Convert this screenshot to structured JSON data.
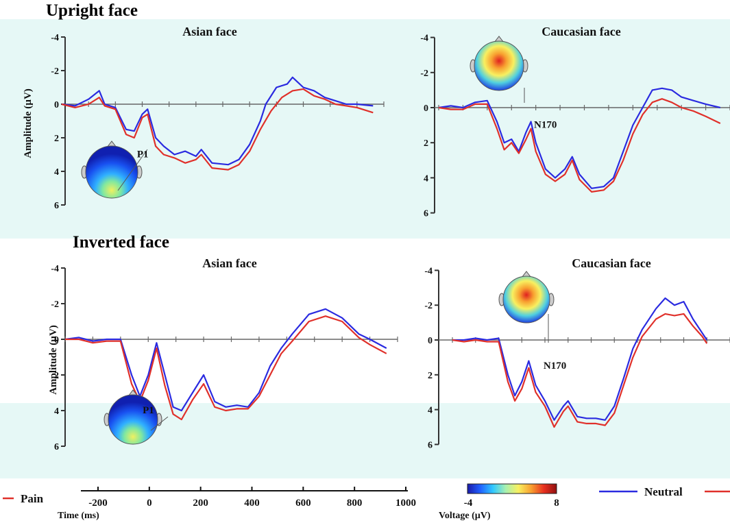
{
  "figure": {
    "sections": [
      {
        "title": "Upright face"
      },
      {
        "title": "Inverted face"
      }
    ]
  },
  "colors": {
    "neutral": "#2a2ae0",
    "pain": "#e0302a",
    "background_tint": "#e6f8f6"
  },
  "colorbar": {
    "label": "Voltage (µV)",
    "min_label": "-4",
    "max_label": "8",
    "colors": [
      "#1a1aa8",
      "#2060ff",
      "#30c8ff",
      "#a8f0b0",
      "#f8f060",
      "#f8a030",
      "#e83020",
      "#901010"
    ]
  },
  "time_axis": {
    "label": "Time (ms)",
    "ticks": [
      "-200",
      "0",
      "200",
      "400",
      "600",
      "800",
      "1000"
    ]
  },
  "legend": {
    "neutral_label": "Neutral",
    "pain_label": "Pain"
  },
  "chart_data": [
    {
      "type": "line",
      "title": "Asian face",
      "section": "Upright face",
      "ylabel": "Amplitude (µV)",
      "y_ticks": [
        "-4",
        "-2",
        "0",
        "2",
        "4",
        "6"
      ],
      "ylim": [
        -4,
        6
      ],
      "xlim": [
        -200,
        1000
      ],
      "annotation": {
        "text": "P1",
        "x": 60,
        "y": 3.0
      },
      "topomap": "posterior-positive",
      "series": [
        {
          "name": "Neutral",
          "points": [
            [
              -200,
              0
            ],
            [
              -150,
              0.1
            ],
            [
              -100,
              -0.3
            ],
            [
              -60,
              -0.8
            ],
            [
              -40,
              0
            ],
            [
              0,
              0.2
            ],
            [
              40,
              1.5
            ],
            [
              70,
              1.6
            ],
            [
              100,
              0.6
            ],
            [
              120,
              0.3
            ],
            [
              150,
              2.0
            ],
            [
              180,
              2.5
            ],
            [
              220,
              3.0
            ],
            [
              260,
              2.8
            ],
            [
              300,
              3.1
            ],
            [
              320,
              2.7
            ],
            [
              360,
              3.5
            ],
            [
              420,
              3.6
            ],
            [
              460,
              3.3
            ],
            [
              500,
              2.4
            ],
            [
              540,
              1.0
            ],
            [
              560,
              0
            ],
            [
              600,
              -1.0
            ],
            [
              640,
              -1.2
            ],
            [
              660,
              -1.6
            ],
            [
              700,
              -1.0
            ],
            [
              740,
              -0.8
            ],
            [
              780,
              -0.4
            ],
            [
              820,
              -0.2
            ],
            [
              860,
              0
            ],
            [
              900,
              0
            ],
            [
              960,
              0.1
            ]
          ]
        },
        {
          "name": "Pain",
          "points": [
            [
              -200,
              0
            ],
            [
              -150,
              0.2
            ],
            [
              -100,
              0
            ],
            [
              -60,
              -0.4
            ],
            [
              -40,
              0.1
            ],
            [
              0,
              0.3
            ],
            [
              40,
              1.8
            ],
            [
              70,
              2.0
            ],
            [
              100,
              0.8
            ],
            [
              120,
              0.6
            ],
            [
              150,
              2.5
            ],
            [
              180,
              3.0
            ],
            [
              220,
              3.2
            ],
            [
              260,
              3.5
            ],
            [
              300,
              3.3
            ],
            [
              320,
              3.0
            ],
            [
              360,
              3.8
            ],
            [
              420,
              3.9
            ],
            [
              460,
              3.6
            ],
            [
              500,
              2.8
            ],
            [
              540,
              1.5
            ],
            [
              580,
              0.4
            ],
            [
              620,
              -0.4
            ],
            [
              660,
              -0.8
            ],
            [
              700,
              -0.9
            ],
            [
              740,
              -0.5
            ],
            [
              780,
              -0.3
            ],
            [
              820,
              0
            ],
            [
              860,
              0.1
            ],
            [
              900,
              0.2
            ],
            [
              960,
              0.5
            ]
          ]
        }
      ]
    },
    {
      "type": "line",
      "title": "Caucasian face",
      "section": "Upright face",
      "ylabel": "",
      "y_ticks": [
        "-4",
        "-2",
        "0",
        "2",
        "4",
        "6"
      ],
      "ylim": [
        -4,
        6
      ],
      "xlim": [
        -200,
        1000
      ],
      "annotation": {
        "text": "N170",
        "x": 170,
        "y": 1.0
      },
      "topomap": "frontal-central",
      "series": [
        {
          "name": "Neutral",
          "points": [
            [
              -200,
              0
            ],
            [
              -150,
              -0.1
            ],
            [
              -100,
              0
            ],
            [
              -50,
              -0.3
            ],
            [
              0,
              -0.4
            ],
            [
              40,
              0.8
            ],
            [
              70,
              2.0
            ],
            [
              100,
              1.8
            ],
            [
              130,
              2.5
            ],
            [
              160,
              1.4
            ],
            [
              180,
              0.8
            ],
            [
              200,
              2.0
            ],
            [
              240,
              3.5
            ],
            [
              280,
              4.0
            ],
            [
              320,
              3.5
            ],
            [
              350,
              2.8
            ],
            [
              380,
              3.8
            ],
            [
              430,
              4.6
            ],
            [
              480,
              4.5
            ],
            [
              520,
              4.0
            ],
            [
              560,
              2.5
            ],
            [
              600,
              1.0
            ],
            [
              640,
              0
            ],
            [
              680,
              -1.0
            ],
            [
              720,
              -1.1
            ],
            [
              760,
              -1.0
            ],
            [
              800,
              -0.6
            ],
            [
              850,
              -0.4
            ],
            [
              900,
              -0.2
            ],
            [
              960,
              0
            ]
          ]
        },
        {
          "name": "Pain",
          "points": [
            [
              -200,
              0
            ],
            [
              -150,
              0.1
            ],
            [
              -100,
              0.1
            ],
            [
              -50,
              -0.2
            ],
            [
              0,
              -0.2
            ],
            [
              40,
              1.2
            ],
            [
              70,
              2.4
            ],
            [
              100,
              2.0
            ],
            [
              130,
              2.6
            ],
            [
              160,
              1.8
            ],
            [
              180,
              1.2
            ],
            [
              200,
              2.5
            ],
            [
              240,
              3.8
            ],
            [
              280,
              4.2
            ],
            [
              320,
              3.8
            ],
            [
              350,
              3.0
            ],
            [
              380,
              4.1
            ],
            [
              430,
              4.8
            ],
            [
              480,
              4.7
            ],
            [
              520,
              4.2
            ],
            [
              560,
              3.0
            ],
            [
              600,
              1.5
            ],
            [
              640,
              0.4
            ],
            [
              680,
              -0.3
            ],
            [
              720,
              -0.5
            ],
            [
              760,
              -0.3
            ],
            [
              800,
              0
            ],
            [
              850,
              0.2
            ],
            [
              900,
              0.5
            ],
            [
              960,
              0.9
            ]
          ]
        }
      ]
    },
    {
      "type": "line",
      "title": "Asian face",
      "section": "Inverted face",
      "ylabel": "Amplitude (µV)",
      "y_ticks": [
        "-4",
        "-2",
        "0",
        "2",
        "4",
        "6"
      ],
      "ylim": [
        -4,
        6
      ],
      "xlim": [
        -200,
        1000
      ],
      "annotation": {
        "text": "P1",
        "x": 60,
        "y": 4.0
      },
      "topomap": "posterior-positive",
      "series": [
        {
          "name": "Neutral",
          "points": [
            [
              -200,
              0
            ],
            [
              -150,
              -0.1
            ],
            [
              -100,
              0.1
            ],
            [
              -50,
              0
            ],
            [
              0,
              0
            ],
            [
              40,
              2.0
            ],
            [
              70,
              3.2
            ],
            [
              100,
              2.0
            ],
            [
              130,
              0.2
            ],
            [
              160,
              2.0
            ],
            [
              190,
              3.8
            ],
            [
              220,
              4.0
            ],
            [
              260,
              3.0
            ],
            [
              300,
              2.0
            ],
            [
              340,
              3.5
            ],
            [
              380,
              3.8
            ],
            [
              420,
              3.7
            ],
            [
              460,
              3.8
            ],
            [
              500,
              3.0
            ],
            [
              540,
              1.5
            ],
            [
              580,
              0.5
            ],
            [
              620,
              -0.3
            ],
            [
              680,
              -1.4
            ],
            [
              740,
              -1.7
            ],
            [
              800,
              -1.2
            ],
            [
              860,
              -0.3
            ],
            [
              900,
              0
            ],
            [
              960,
              0.5
            ]
          ]
        },
        {
          "name": "Pain",
          "points": [
            [
              -200,
              0
            ],
            [
              -150,
              0
            ],
            [
              -100,
              0.2
            ],
            [
              -50,
              0.1
            ],
            [
              0,
              0.1
            ],
            [
              40,
              2.5
            ],
            [
              70,
              3.5
            ],
            [
              100,
              2.3
            ],
            [
              130,
              0.5
            ],
            [
              160,
              2.6
            ],
            [
              190,
              4.2
            ],
            [
              220,
              4.5
            ],
            [
              260,
              3.4
            ],
            [
              300,
              2.5
            ],
            [
              340,
              3.8
            ],
            [
              380,
              4.0
            ],
            [
              420,
              3.9
            ],
            [
              460,
              3.9
            ],
            [
              500,
              3.2
            ],
            [
              540,
              2.0
            ],
            [
              580,
              0.8
            ],
            [
              620,
              0.1
            ],
            [
              680,
              -1.0
            ],
            [
              740,
              -1.3
            ],
            [
              800,
              -1.0
            ],
            [
              860,
              -0.1
            ],
            [
              900,
              0.3
            ],
            [
              960,
              0.8
            ]
          ]
        }
      ]
    },
    {
      "type": "line",
      "title": "Caucasian face",
      "section": "Inverted face",
      "ylabel": "",
      "y_ticks": [
        "-4",
        "-2",
        "0",
        "2",
        "4",
        "6"
      ],
      "ylim": [
        -4,
        6
      ],
      "xlim": [
        -200,
        1000
      ],
      "annotation": {
        "text": "N170",
        "x": 170,
        "y": 1.5
      },
      "topomap": "frontal-central",
      "series": [
        {
          "name": "Neutral",
          "points": [
            [
              -200,
              0
            ],
            [
              -150,
              0
            ],
            [
              -100,
              -0.1
            ],
            [
              -50,
              0
            ],
            [
              0,
              -0.1
            ],
            [
              40,
              2.0
            ],
            [
              70,
              3.2
            ],
            [
              100,
              2.4
            ],
            [
              130,
              1.2
            ],
            [
              160,
              2.6
            ],
            [
              200,
              3.5
            ],
            [
              240,
              4.6
            ],
            [
              280,
              3.8
            ],
            [
              300,
              3.5
            ],
            [
              340,
              4.4
            ],
            [
              380,
              4.5
            ],
            [
              420,
              4.5
            ],
            [
              460,
              4.6
            ],
            [
              500,
              3.8
            ],
            [
              540,
              2.2
            ],
            [
              580,
              0.5
            ],
            [
              620,
              -0.6
            ],
            [
              680,
              -1.8
            ],
            [
              720,
              -2.4
            ],
            [
              760,
              -2.0
            ],
            [
              800,
              -2.2
            ],
            [
              840,
              -1.2
            ],
            [
              880,
              -0.4
            ],
            [
              900,
              0
            ]
          ]
        },
        {
          "name": "Pain",
          "points": [
            [
              -200,
              0
            ],
            [
              -150,
              0.1
            ],
            [
              -100,
              0
            ],
            [
              -50,
              0.1
            ],
            [
              0,
              0.1
            ],
            [
              40,
              2.4
            ],
            [
              70,
              3.5
            ],
            [
              100,
              2.8
            ],
            [
              130,
              1.6
            ],
            [
              160,
              3.0
            ],
            [
              200,
              3.8
            ],
            [
              240,
              5.0
            ],
            [
              280,
              4.1
            ],
            [
              300,
              3.8
            ],
            [
              340,
              4.7
            ],
            [
              380,
              4.8
            ],
            [
              420,
              4.8
            ],
            [
              460,
              4.9
            ],
            [
              500,
              4.2
            ],
            [
              540,
              2.6
            ],
            [
              580,
              1.0
            ],
            [
              620,
              -0.2
            ],
            [
              680,
              -1.2
            ],
            [
              720,
              -1.5
            ],
            [
              760,
              -1.4
            ],
            [
              800,
              -1.5
            ],
            [
              840,
              -0.8
            ],
            [
              880,
              -0.2
            ],
            [
              900,
              0.2
            ]
          ]
        }
      ]
    }
  ]
}
